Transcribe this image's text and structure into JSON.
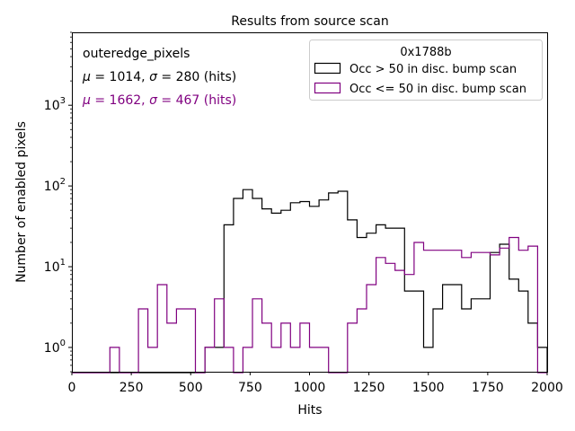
{
  "chart_data": {
    "type": "histogram",
    "title": "Results from source scan",
    "xlabel": "Hits",
    "ylabel": "Number of enabled pixels",
    "xlim": [
      0,
      2000
    ],
    "ylim": [
      0.5,
      8000
    ],
    "y_scale": "log",
    "x_ticks": [
      0,
      250,
      500,
      750,
      1000,
      1250,
      1500,
      1750,
      2000
    ],
    "x_tick_labels": [
      "0",
      "250",
      "500",
      "750",
      "1000",
      "1250",
      "1500",
      "1750",
      "2000"
    ],
    "y_ticks": [
      1,
      10,
      100,
      1000
    ],
    "y_tick_labels": [
      {
        "base": "10",
        "exp": "0"
      },
      {
        "base": "10",
        "exp": "1"
      },
      {
        "base": "10",
        "exp": "2"
      },
      {
        "base": "10",
        "exp": "3"
      }
    ],
    "grid": false,
    "annotations": {
      "name": "outeredge_pixels",
      "stats1": {
        "mu": "μ",
        "eq1": " = 1014, ",
        "sigma": "σ",
        "eq2": " = 280 (hits)",
        "color": "#000000"
      },
      "stats2": {
        "mu": "μ",
        "eq1": " = 1662, ",
        "sigma": "σ",
        "eq2": " = 467 (hits)",
        "color": "#800080"
      }
    },
    "legend": {
      "title": "0x1788b",
      "placement": "top-right"
    },
    "bin_edges": [
      0,
      40,
      80,
      120,
      160,
      200,
      240,
      280,
      320,
      360,
      400,
      440,
      480,
      520,
      560,
      600,
      640,
      680,
      720,
      760,
      800,
      840,
      880,
      920,
      960,
      1000,
      1040,
      1080,
      1120,
      1160,
      1200,
      1240,
      1280,
      1320,
      1360,
      1400,
      1440,
      1480,
      1520,
      1560,
      1600,
      1640,
      1680,
      1720,
      1760,
      1800,
      1840,
      1880,
      1920,
      1960,
      2000
    ],
    "series": [
      {
        "name": "Occ > 50 in disc. bump scan",
        "color": "#000000",
        "values": [
          0,
          0,
          0,
          0,
          0,
          0,
          0,
          0,
          0,
          0,
          0,
          0,
          0,
          0,
          1,
          1,
          33,
          70,
          90,
          70,
          52,
          46,
          50,
          62,
          64,
          56,
          67,
          82,
          86,
          38,
          23,
          26,
          33,
          30,
          30,
          5,
          5,
          1,
          3,
          6,
          6,
          3,
          4,
          4,
          15,
          19,
          7,
          5,
          2,
          1
        ]
      },
      {
        "name": "Occ <= 50 in disc. bump scan",
        "color": "#800080",
        "values": [
          0,
          0,
          0,
          0,
          1,
          0,
          0,
          3,
          1,
          6,
          2,
          3,
          3,
          0,
          1,
          4,
          1,
          0,
          1,
          4,
          2,
          1,
          2,
          1,
          2,
          1,
          1,
          0,
          0,
          2,
          3,
          6,
          13,
          11,
          9,
          8,
          20,
          16,
          16,
          16,
          16,
          13,
          15,
          15,
          14,
          17,
          23,
          16,
          18,
          0
        ]
      }
    ]
  }
}
